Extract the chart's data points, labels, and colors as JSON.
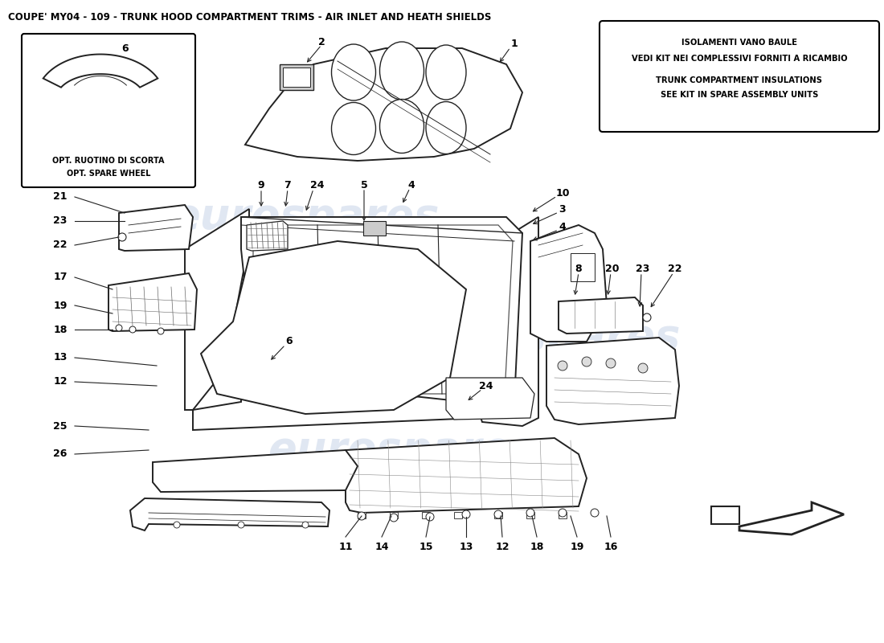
{
  "title": "COUPE' MY04 - 109 - TRUNK HOOD COMPARTMENT TRIMS - AIR INLET AND HEATH SHIELDS",
  "title_fontsize": 8.5,
  "background_color": "#ffffff",
  "watermark_text": "eurospares",
  "watermark_color": "#c8d4e8",
  "info_box": {
    "lines": [
      "ISOLAMENTI VANO BAULE",
      "VEDI KIT NEI COMPLESSIVI FORNITI A RICAMBIO",
      "TRUNK COMPARTMENT INSULATIONS",
      "SEE KIT IN SPARE ASSEMBLY UNITS"
    ],
    "fontsize": 7.2
  }
}
